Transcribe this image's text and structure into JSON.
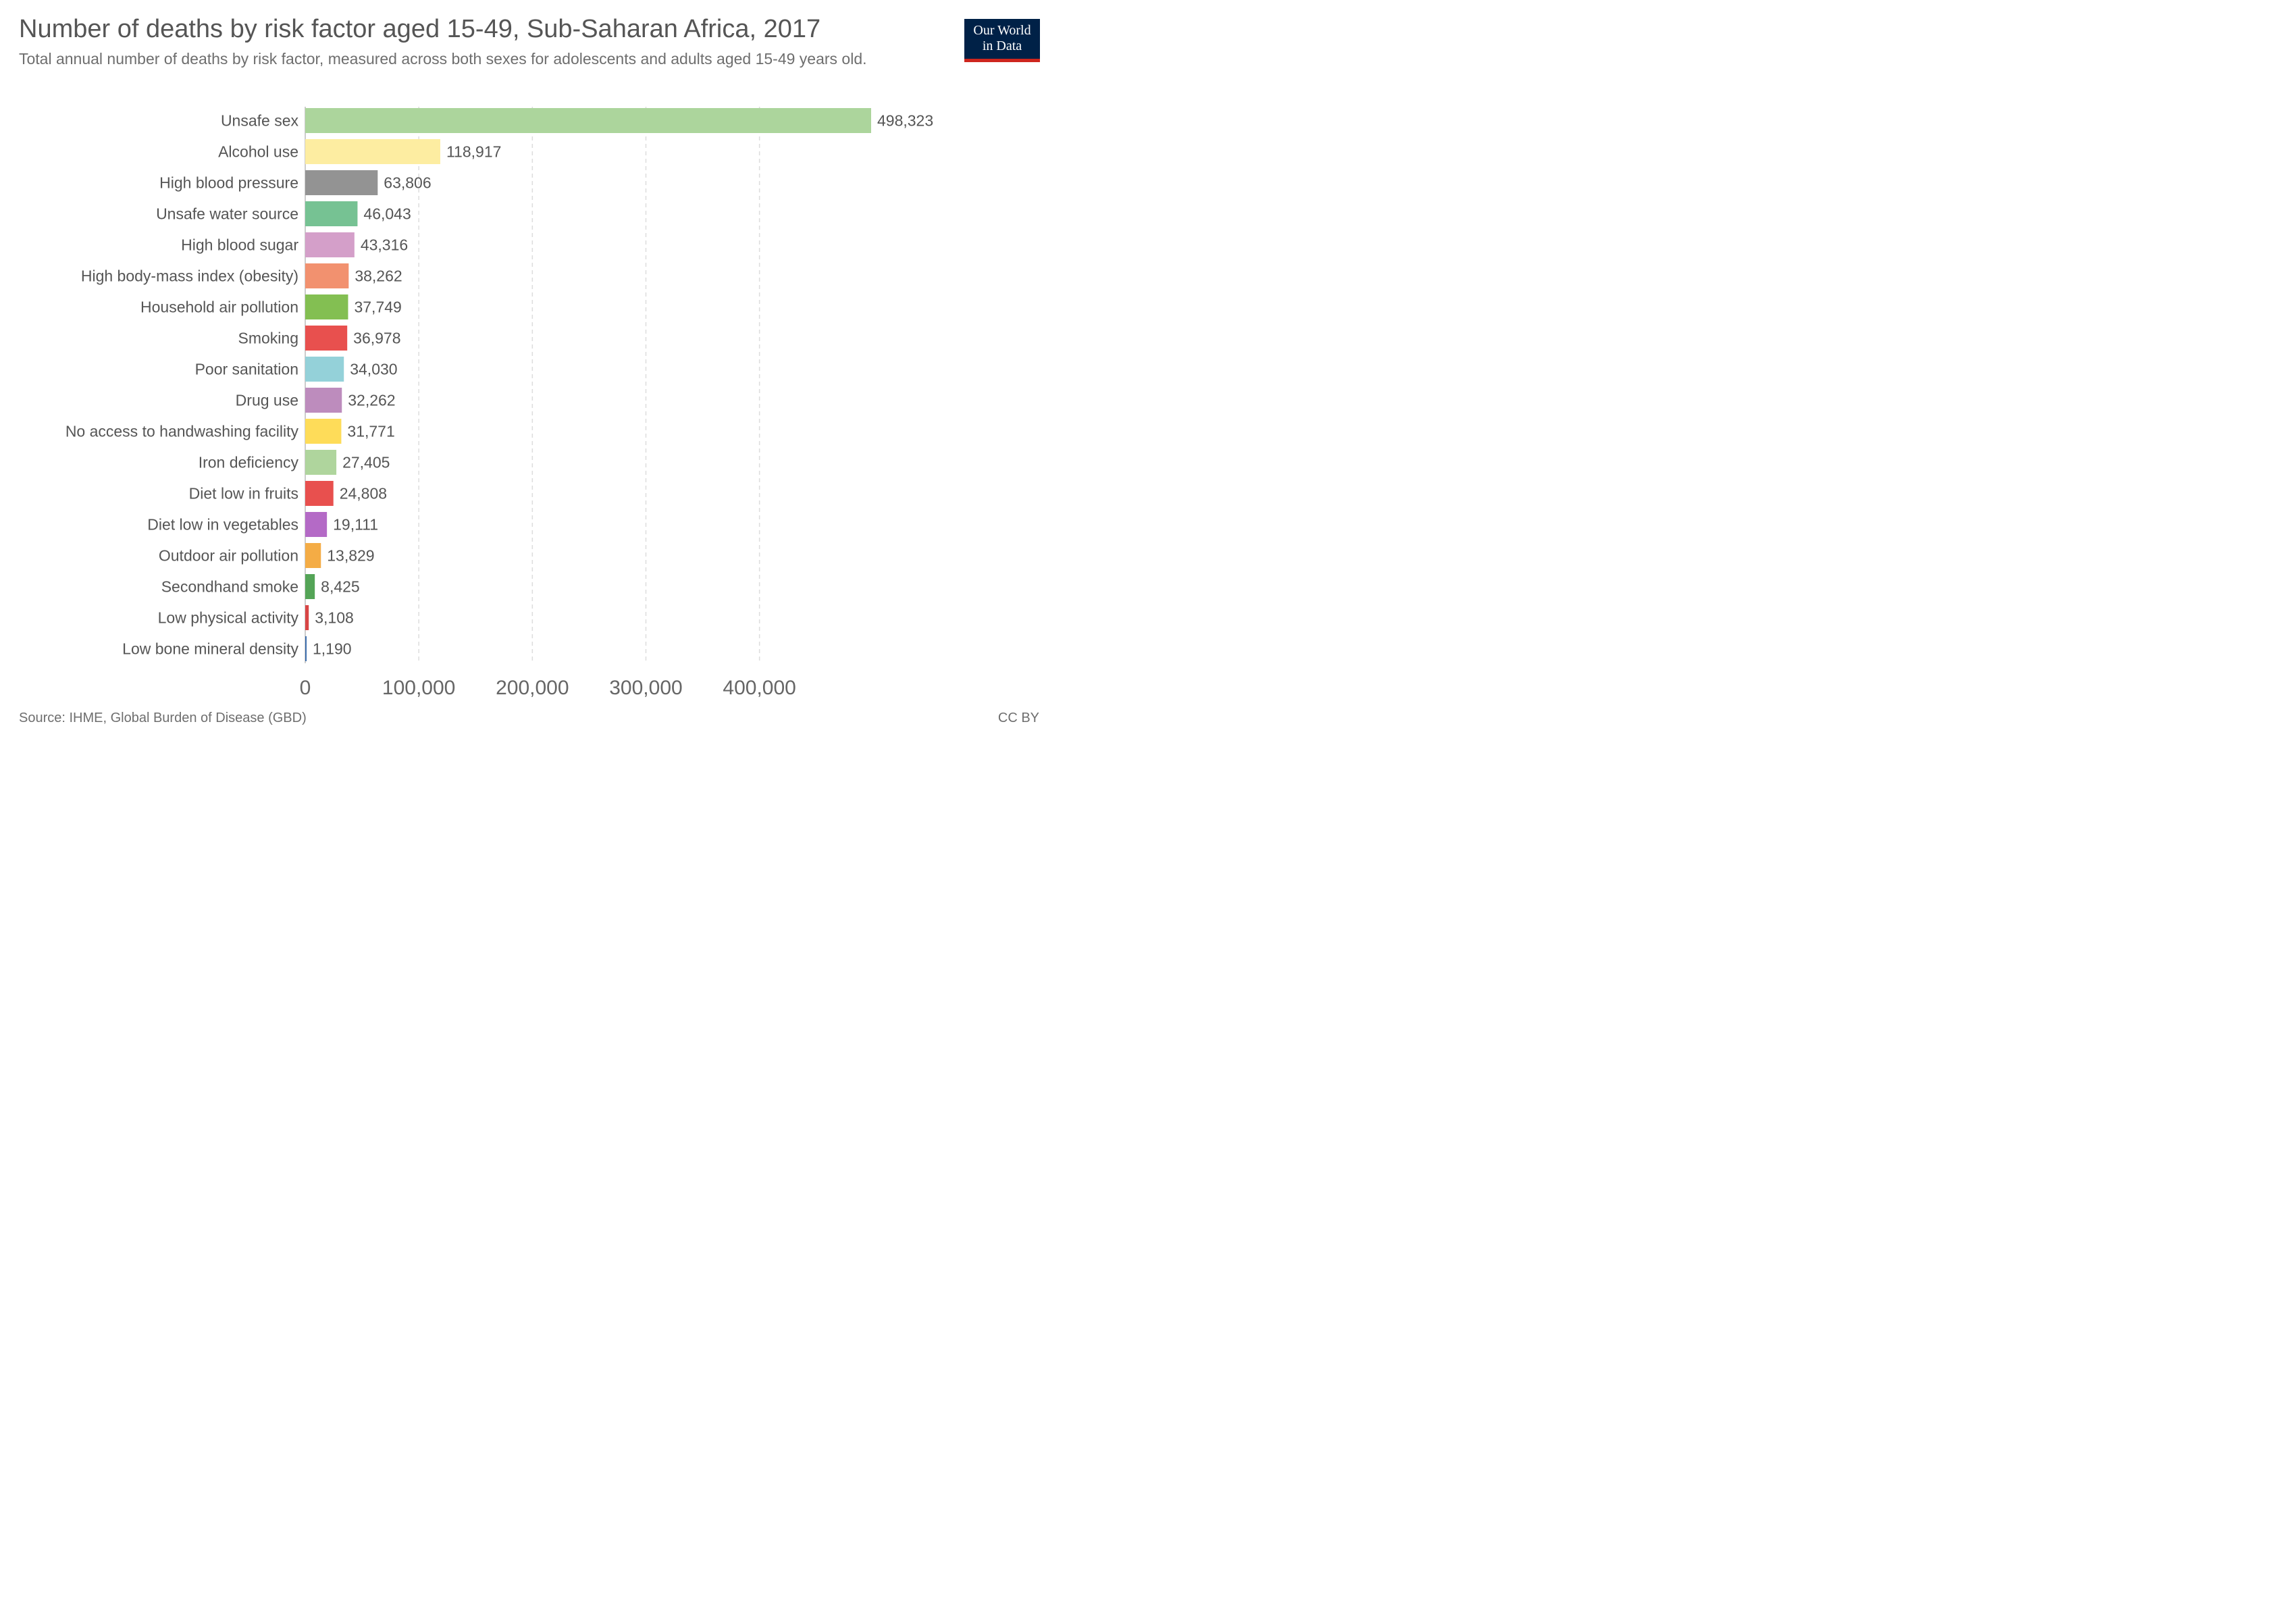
{
  "header": {
    "title": "Number of deaths by risk factor aged 15-49, Sub-Saharan Africa, 2017",
    "subtitle": "Total annual number of deaths by risk factor, measured across both sexes for adolescents and adults aged 15-49 years old."
  },
  "logo": {
    "line1": "Our World",
    "line2": "in Data"
  },
  "footer": {
    "source": "Source: IHME, Global Burden of Disease (GBD)",
    "license": "CC BY"
  },
  "chart_data": {
    "type": "bar",
    "orientation": "horizontal",
    "xlim": [
      0,
      500000
    ],
    "grid": true,
    "x_ticks": [
      0,
      100000,
      200000,
      300000,
      400000
    ],
    "x_tick_labels": [
      "0",
      "100,000",
      "200,000",
      "300,000",
      "400,000"
    ],
    "categories": [
      "Unsafe sex",
      "Alcohol use",
      "High blood pressure",
      "Unsafe water source",
      "High blood sugar",
      "High body-mass index (obesity)",
      "Household air pollution",
      "Smoking",
      "Poor sanitation",
      "Drug use",
      "No access to handwashing facility",
      "Iron deficiency",
      "Diet low in fruits",
      "Diet low in vegetables",
      "Outdoor air pollution",
      "Secondhand smoke",
      "Low physical activity",
      "Low bone mineral density"
    ],
    "values": [
      498323,
      118917,
      63806,
      46043,
      43316,
      38262,
      37749,
      36978,
      34030,
      32262,
      31771,
      27405,
      24808,
      19111,
      13829,
      8425,
      3108,
      1190
    ],
    "value_labels": [
      "498,323",
      "118,917",
      "63,806",
      "46,043",
      "43,316",
      "38,262",
      "37,749",
      "36,978",
      "34,030",
      "32,262",
      "31,771",
      "27,405",
      "24,808",
      "19,111",
      "13,829",
      "8,425",
      "3,108",
      "1,190"
    ],
    "colors": [
      "#acd59c",
      "#fdeda1",
      "#939393",
      "#76c293",
      "#d49fc9",
      "#f2916f",
      "#83bf52",
      "#e8504e",
      "#94d1d9",
      "#bd8cbd",
      "#fedc59",
      "#afd59d",
      "#e8504e",
      "#b46ac6",
      "#f4ac45",
      "#54a457",
      "#d84545",
      "#3e6fad"
    ]
  }
}
